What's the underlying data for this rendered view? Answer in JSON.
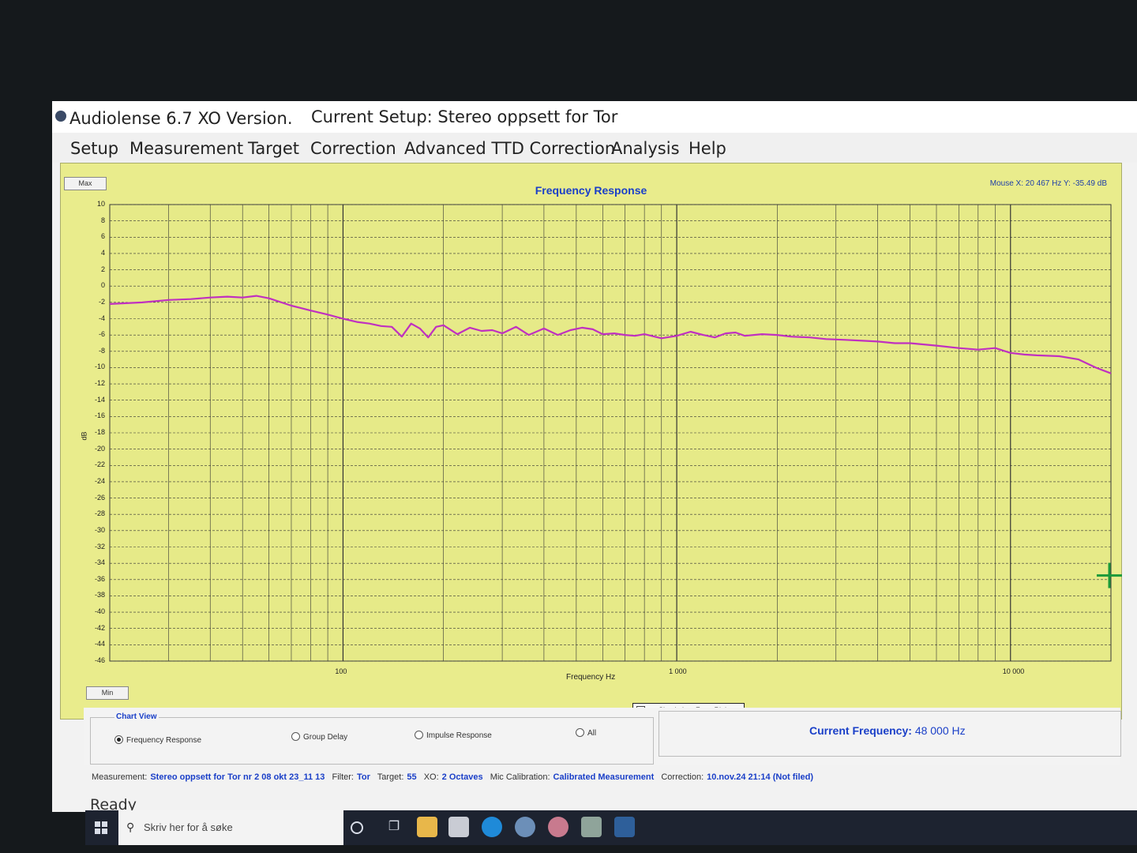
{
  "window": {
    "app_title": "Audiolense 6.7 XO Version.",
    "current_setup": "Current Setup: Stereo oppsett for Tor"
  },
  "menu": [
    {
      "label": "Setup"
    },
    {
      "label": "Measurement"
    },
    {
      "label": "Target"
    },
    {
      "label": "Correction"
    },
    {
      "label": "Advanced TTD Correction"
    },
    {
      "label": "Analysis"
    },
    {
      "label": "Help"
    }
  ],
  "chart_panel": {
    "title": "Frequency Response",
    "mouse_readout": "Mouse X: 20 467 Hz   Y: -35.49 dB",
    "max_button": "Max",
    "min_button": "Min",
    "x_axis_title": "Frequency Hz",
    "y_axis_title": "dB",
    "legend_label": "Simulation: Front Right"
  },
  "chart_data": {
    "type": "line",
    "title": "Frequency Response",
    "xlabel": "Frequency Hz",
    "ylabel": "dB",
    "xscale": "log",
    "xlim": [
      20,
      20000
    ],
    "ylim": [
      -46,
      10
    ],
    "x_tick_labels": [
      "100",
      "1 000",
      "10 000"
    ],
    "x_ticks": [
      100,
      1000,
      10000
    ],
    "y_ticks": [
      10,
      8,
      6,
      4,
      2,
      0,
      -2,
      -4,
      -6,
      -8,
      -10,
      -12,
      -14,
      -16,
      -18,
      -20,
      -22,
      -24,
      -26,
      -28,
      -30,
      -32,
      -34,
      -36,
      -38,
      -40,
      -42,
      -44,
      -46
    ],
    "grid": true,
    "legend_position": "bottom-center",
    "series": [
      {
        "name": "Simulation: Front Right",
        "color": "#c030c0",
        "x": [
          20,
          25,
          30,
          35,
          40,
          45,
          50,
          55,
          60,
          70,
          80,
          90,
          100,
          110,
          120,
          130,
          140,
          150,
          160,
          170,
          180,
          190,
          200,
          220,
          240,
          260,
          280,
          300,
          330,
          360,
          400,
          440,
          480,
          520,
          560,
          600,
          650,
          700,
          750,
          800,
          900,
          1000,
          1100,
          1200,
          1300,
          1400,
          1500,
          1600,
          1800,
          2000,
          2200,
          2500,
          2800,
          3200,
          3600,
          4000,
          4500,
          5000,
          6000,
          7000,
          8000,
          9000,
          10000,
          11000,
          12000,
          14000,
          16000,
          18000,
          20000
        ],
        "y": [
          -2.2,
          -2.0,
          -1.7,
          -1.6,
          -1.4,
          -1.3,
          -1.4,
          -1.2,
          -1.5,
          -2.4,
          -3.0,
          -3.5,
          -4.0,
          -4.4,
          -4.6,
          -4.9,
          -5.0,
          -6.2,
          -4.6,
          -5.2,
          -6.3,
          -5.0,
          -4.8,
          -5.9,
          -5.1,
          -5.5,
          -5.4,
          -5.8,
          -5.0,
          -6.0,
          -5.2,
          -6.0,
          -5.4,
          -5.1,
          -5.3,
          -5.9,
          -5.8,
          -6.0,
          -6.1,
          -5.9,
          -6.4,
          -6.1,
          -5.6,
          -6.0,
          -6.3,
          -5.8,
          -5.7,
          -6.1,
          -5.9,
          -6.0,
          -6.2,
          -6.3,
          -6.5,
          -6.6,
          -6.7,
          -6.8,
          -7.0,
          -7.0,
          -7.3,
          -7.6,
          -7.8,
          -7.6,
          -8.2,
          -8.4,
          -8.5,
          -8.6,
          -9.0,
          -10.0,
          -10.7
        ]
      }
    ]
  },
  "chart_view": {
    "legend": "Chart View",
    "options": [
      {
        "label": "Frequency Response",
        "selected": true
      },
      {
        "label": "Group Delay",
        "selected": false
      },
      {
        "label": "Impulse Response",
        "selected": false
      },
      {
        "label": "All",
        "selected": false
      }
    ]
  },
  "current_frequency": {
    "label": "Current Frequency:",
    "value": "48 000 Hz"
  },
  "status": {
    "measurement_key": "Measurement:",
    "measurement_val": "Stereo oppsett for Tor nr 2 08 okt 23_11 13",
    "filter_key": "Filter:",
    "filter_val": "Tor",
    "target_key": "Target:",
    "target_val": "55",
    "xo_key": "XO:",
    "xo_val": "2 Octaves",
    "mic_key": "Mic Calibration:",
    "mic_val": "Calibrated Measurement",
    "correction_key": "Correction:",
    "correction_val": "10.nov.24 21:14 (Not filed)",
    "ready": "Ready"
  },
  "taskbar": {
    "search_placeholder": "Skriv her for å søke"
  },
  "colors": {
    "chart_background": "#e9ec8c",
    "curve": "#c030c0",
    "accent_text": "#1a3fc8",
    "crosshair": "#1b9a3a"
  }
}
